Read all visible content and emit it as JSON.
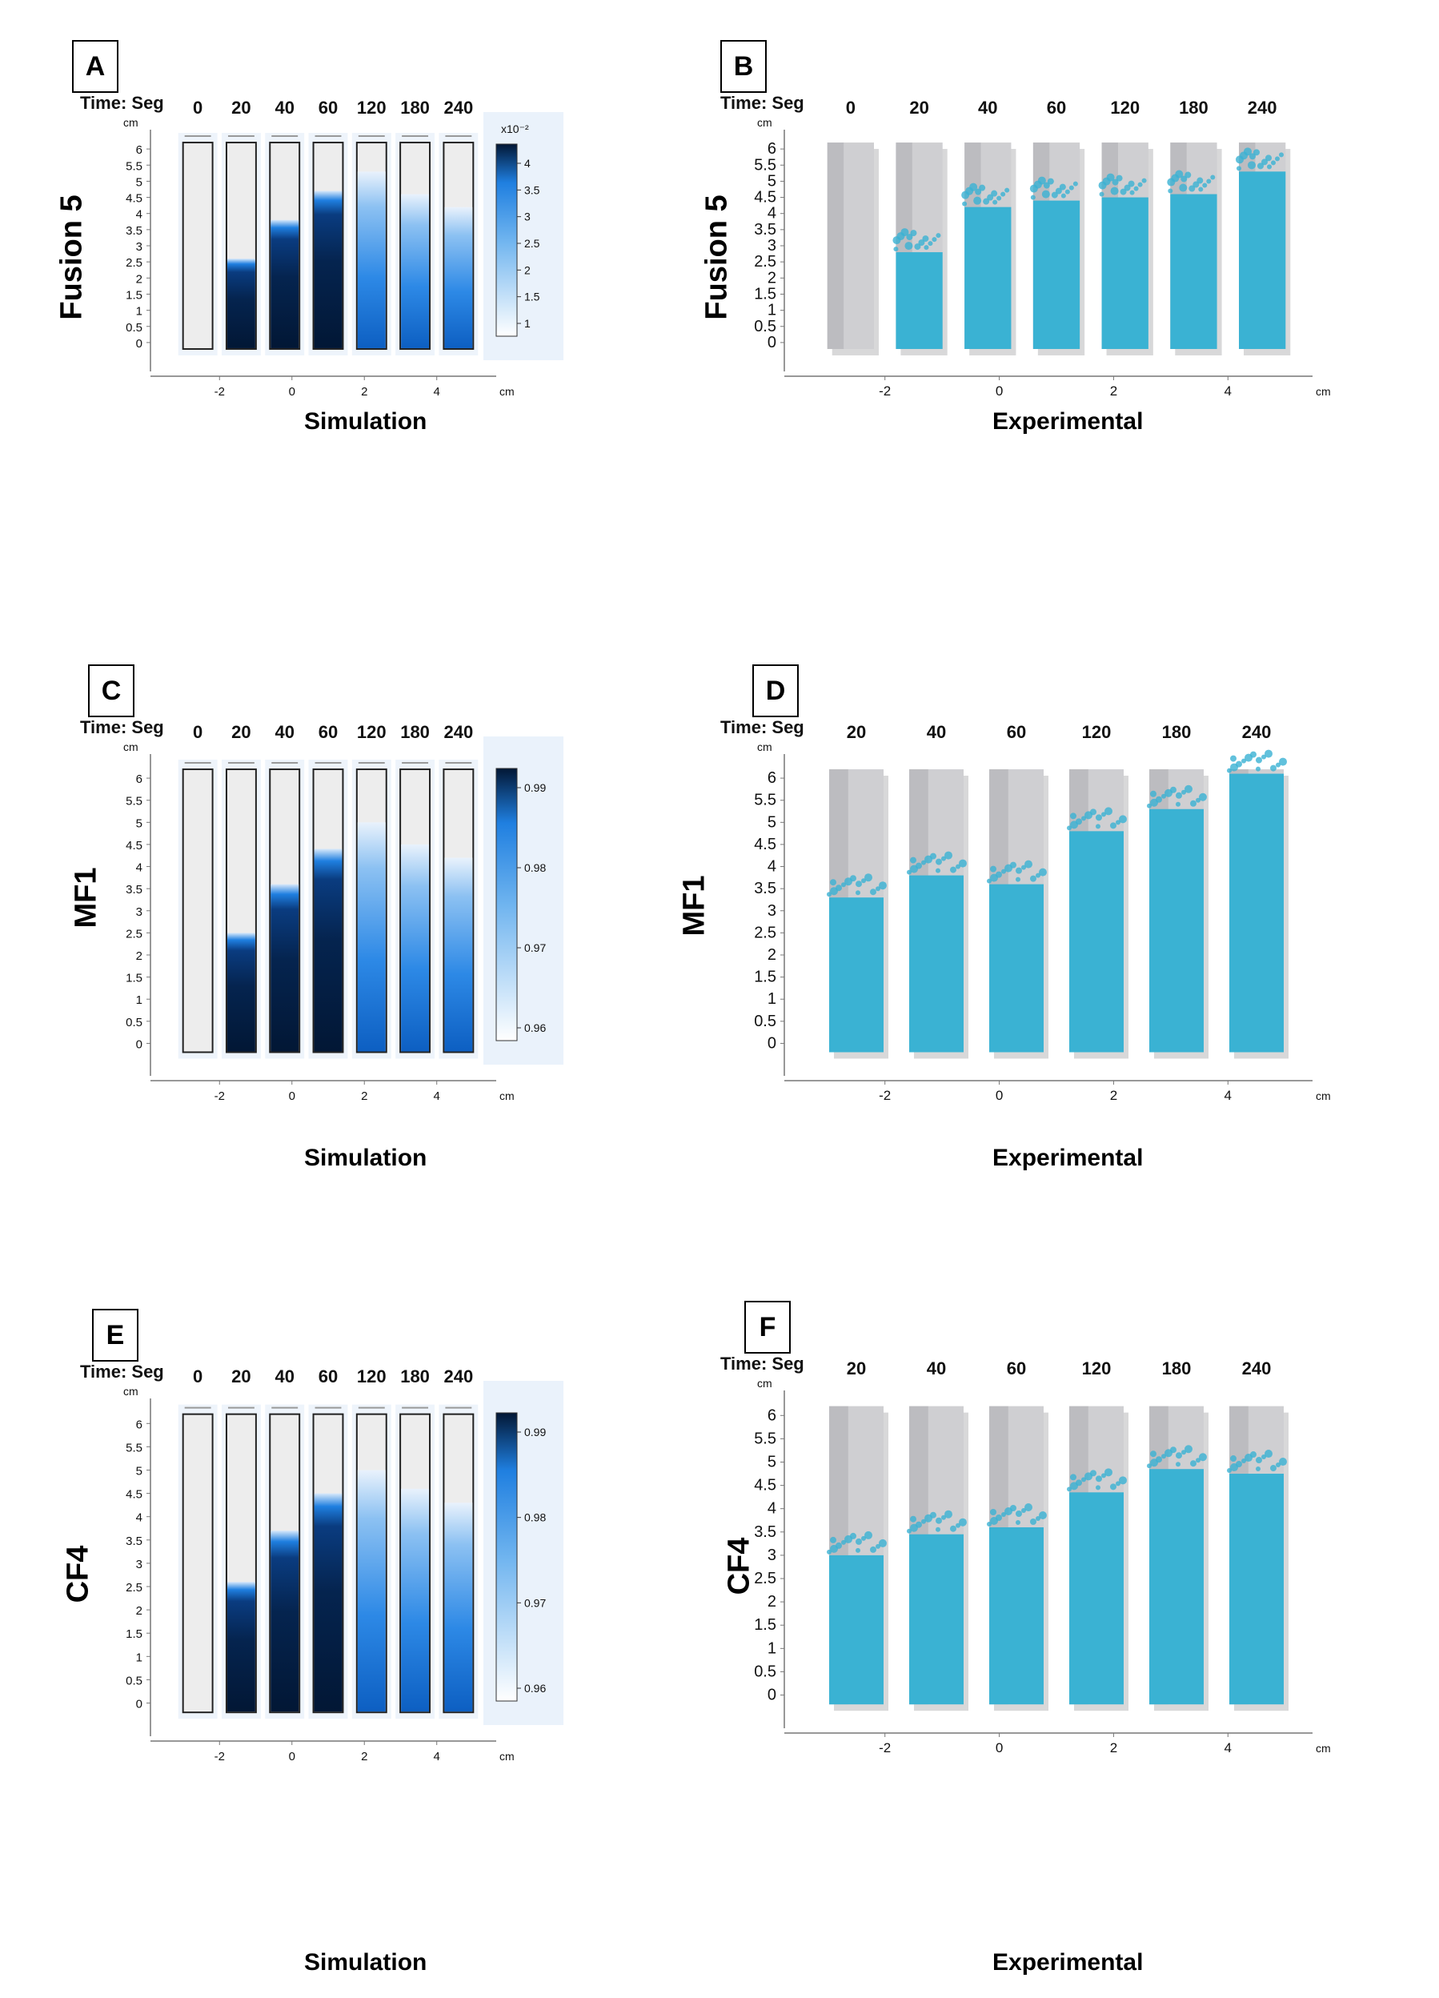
{
  "chart_data": [
    {
      "panel": "A",
      "type": "heatmap",
      "method": "simulation",
      "material": "Fusion 5",
      "time_label": "Time: Seg",
      "times": [
        "0",
        "20",
        "40",
        "60",
        "120",
        "180",
        "240"
      ],
      "front_height_cm": [
        0,
        2.6,
        3.8,
        4.7,
        5.3,
        4.6,
        4.2
      ],
      "y_unit": "cm",
      "y_ticks": [
        "0",
        "0.5",
        "1",
        "1.5",
        "2",
        "2.5",
        "3",
        "3.5",
        "4",
        "4.5",
        "5",
        "5.5",
        "6"
      ],
      "x_unit": "cm",
      "x_ticks": [
        "-2",
        "0",
        "2",
        "4"
      ],
      "colorbar": {
        "multiplier": "x10⁻²",
        "ticks": [
          "1",
          "1.5",
          "2",
          "2.5",
          "3",
          "3.5",
          "4"
        ]
      },
      "xlabel": "Simulation"
    },
    {
      "panel": "B",
      "type": "photo",
      "method": "experimental",
      "material": "Fusion 5",
      "time_label": "Time: Seg",
      "times": [
        "0",
        "20",
        "40",
        "60",
        "120",
        "180",
        "240"
      ],
      "front_height_cm": [
        0,
        2.8,
        4.2,
        4.4,
        4.5,
        4.6,
        5.3
      ],
      "y_unit": "cm",
      "y_ticks": [
        "0",
        "0.5",
        "1",
        "1.5",
        "2",
        "2.5",
        "3",
        "3.5",
        "4",
        "4.5",
        "5",
        "5.5",
        "6"
      ],
      "x_unit": "cm",
      "x_ticks": [
        "-2",
        "0",
        "2",
        "4"
      ],
      "xlabel": "Experimental"
    },
    {
      "panel": "C",
      "type": "heatmap",
      "method": "simulation",
      "material": "MF1",
      "time_label": "Time: Seg",
      "times": [
        "0",
        "20",
        "40",
        "60",
        "120",
        "180",
        "240"
      ],
      "front_height_cm": [
        0,
        2.5,
        3.6,
        4.4,
        5.0,
        4.5,
        4.2
      ],
      "y_unit": "cm",
      "y_ticks": [
        "0",
        "0.5",
        "1",
        "1.5",
        "2",
        "2.5",
        "3",
        "3.5",
        "4",
        "4.5",
        "5",
        "5.5",
        "6"
      ],
      "x_unit": "cm",
      "x_ticks": [
        "-2",
        "0",
        "2",
        "4"
      ],
      "colorbar": {
        "multiplier": "",
        "ticks": [
          "0.96",
          "0.97",
          "0.98",
          "0.99"
        ]
      },
      "xlabel": "Simulation"
    },
    {
      "panel": "D",
      "type": "photo",
      "method": "experimental",
      "material": "MF1",
      "time_label": "Time: Seg",
      "times": [
        "20",
        "40",
        "60",
        "120",
        "180",
        "240"
      ],
      "front_height_cm": [
        3.3,
        3.8,
        3.6,
        4.8,
        5.3,
        6.1
      ],
      "y_unit": "cm",
      "y_ticks": [
        "0",
        "0.5",
        "1",
        "1.5",
        "2",
        "2.5",
        "3",
        "3.5",
        "4",
        "4.5",
        "5",
        "5.5",
        "6"
      ],
      "x_unit": "cm",
      "x_ticks": [
        "-2",
        "0",
        "2",
        "4"
      ],
      "xlabel": "Experimental"
    },
    {
      "panel": "E",
      "type": "heatmap",
      "method": "simulation",
      "material": "CF4",
      "time_label": "Time: Seg",
      "times": [
        "0",
        "20",
        "40",
        "60",
        "120",
        "180",
        "240"
      ],
      "front_height_cm": [
        0,
        2.6,
        3.7,
        4.5,
        5.0,
        4.6,
        4.3
      ],
      "y_unit": "cm",
      "y_ticks": [
        "0",
        "0.5",
        "1",
        "1.5",
        "2",
        "2.5",
        "3",
        "3.5",
        "4",
        "4.5",
        "5",
        "5.5",
        "6"
      ],
      "x_unit": "cm",
      "x_ticks": [
        "-2",
        "0",
        "2",
        "4"
      ],
      "colorbar": {
        "multiplier": "",
        "ticks": [
          "0.96",
          "0.97",
          "0.98",
          "0.99"
        ]
      },
      "xlabel": "Simulation"
    },
    {
      "panel": "F",
      "type": "photo",
      "method": "experimental",
      "material": "CF4",
      "time_label": "Time: Seg",
      "times": [
        "20",
        "40",
        "60",
        "120",
        "180",
        "240"
      ],
      "front_height_cm": [
        3.0,
        3.45,
        3.6,
        4.35,
        4.85,
        4.75
      ],
      "y_unit": "cm",
      "y_ticks": [
        "0",
        "0.5",
        "1",
        "1.5",
        "2",
        "2.5",
        "3",
        "3.5",
        "4",
        "4.5",
        "5",
        "5.5",
        "6"
      ],
      "x_unit": "cm",
      "x_ticks": [
        "-2",
        "0",
        "2",
        "4"
      ],
      "xlabel": "Experimental"
    }
  ],
  "colors": {
    "sim_dark": "#021735",
    "sim_mid": "#1f7fe0",
    "sim_light": "#e9f2fc",
    "sim_background": "#ededed",
    "exp_blue": "#3ab2d3",
    "exp_dark": "#2aa3c4",
    "exp_paper": "#cfcfd2",
    "exp_shadow": "#8e8e93"
  }
}
